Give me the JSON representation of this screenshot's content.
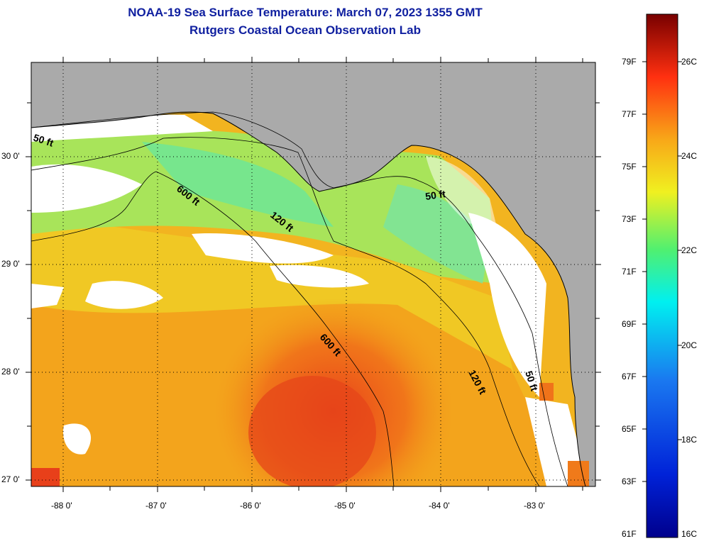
{
  "title": {
    "line1": "NOAA-19 Sea Surface Temperature:  March 07, 2023 1355 GMT",
    "line2": "Rutgers Coastal Ocean Observation Lab"
  },
  "map": {
    "lon_labels": [
      "-88 0'",
      "-87 0'",
      "-86 0'",
      "-85 0'",
      "-84 0'",
      "-83 0'"
    ],
    "lat_labels": [
      "30 0'",
      "29 0'",
      "28 0'",
      "27 0'"
    ],
    "contour_labels": {
      "c50_west": "50 ft",
      "c600_north": "600 ft",
      "c120_north": "120 ft",
      "c50_east": "50 ft",
      "c600_south": "600 ft",
      "c120_south": "120 ft",
      "c50_south": "50 ft"
    }
  },
  "colorbar": {
    "f_labels": [
      "79F",
      "77F",
      "75F",
      "73F",
      "71F",
      "69F",
      "67F",
      "65F",
      "63F",
      "61F"
    ],
    "c_labels": [
      "26C",
      "24C",
      "22C",
      "20C",
      "18C",
      "16C"
    ]
  },
  "colors": {
    "land": "#aaaaaa",
    "cloud": "#ffffff",
    "title_blue": "#1020a0",
    "warm_core": "#e8401a",
    "orange": "#f39a18",
    "yellow": "#f2df25",
    "green": "#8fe070"
  }
}
